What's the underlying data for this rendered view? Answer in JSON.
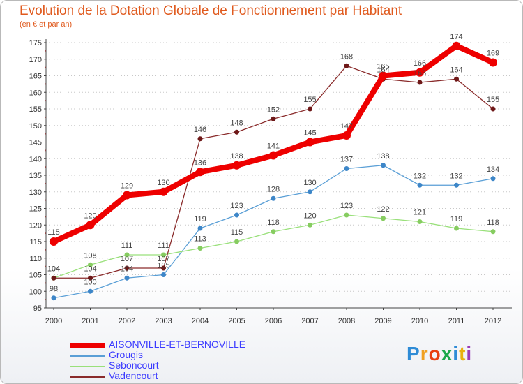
{
  "header": {
    "title": "Evolution de la Dotation Globale de Fonctionnement par Habitant",
    "subtitle": "(en € et par an)"
  },
  "logo": {
    "text": "Proxiti",
    "letter_colors": [
      "#2e8bd6",
      "#f0a020",
      "#e84010",
      "#1aa84a",
      "#2e8bd6",
      "#e8b010",
      "#9a3ab8"
    ]
  },
  "colors": {
    "frame_border": "#b9b9b9",
    "grid": "#c8c8c8",
    "axis": "#444444",
    "title": "#e05a1e",
    "legend_text": "#3b3bff"
  },
  "chart_data": {
    "type": "line",
    "title": "Evolution de la Dotation Globale de Fonctionnement par Habitant",
    "subtitle": "(en € et par an)",
    "xlabel": "",
    "ylabel": "",
    "x": [
      "2000",
      "2001",
      "2002",
      "2003",
      "2004",
      "2005",
      "2006",
      "2007",
      "2008",
      "2009",
      "2010",
      "2011",
      "2012"
    ],
    "ylim": [
      95,
      175
    ],
    "yticks": [
      95,
      100,
      105,
      110,
      115,
      120,
      125,
      130,
      135,
      140,
      145,
      150,
      155,
      160,
      165,
      170,
      175
    ],
    "grid": "horizontal",
    "legend_position": "bottom-left",
    "series": [
      {
        "name": "AISONVILLE-ET-BERNOVILLE",
        "color": "#ee0000",
        "width": 8,
        "marker_color": "#ee0000",
        "marker_radius": 6,
        "values": [
          115,
          120,
          129,
          130,
          136,
          138,
          141,
          145,
          147,
          165,
          166,
          174,
          169
        ]
      },
      {
        "name": "Grougis",
        "color": "#5a9fd6",
        "width": 1.3,
        "marker_color": "#3d86c8",
        "marker_radius": 3.5,
        "values": [
          98,
          100,
          104,
          105,
          119,
          123,
          128,
          130,
          137,
          138,
          132,
          132,
          134
        ]
      },
      {
        "name": "Seboncourt",
        "color": "#99e07a",
        "width": 1.3,
        "marker_color": "#86cc60",
        "marker_radius": 3.5,
        "values": [
          104,
          108,
          111,
          111,
          113,
          115,
          118,
          120,
          123,
          122,
          121,
          119,
          118
        ]
      },
      {
        "name": "Vadencourt",
        "color": "#8a2b2b",
        "width": 1.3,
        "marker_color": "#6e1818",
        "marker_radius": 3.5,
        "values": [
          104,
          104,
          107,
          107,
          146,
          148,
          152,
          155,
          168,
          164,
          163,
          164,
          155
        ]
      }
    ]
  }
}
